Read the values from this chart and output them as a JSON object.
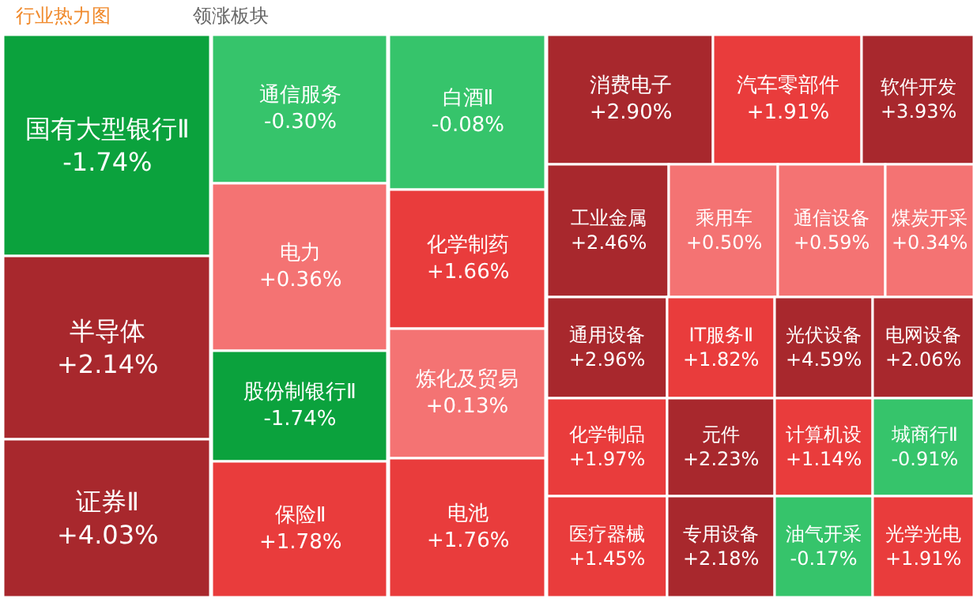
{
  "chart_data": {
    "type": "other",
    "title": "行业热力图",
    "annotations": [
      "领涨板块"
    ],
    "categories": [
      "国有大型银行Ⅱ",
      "半导体",
      "证券Ⅱ",
      "通信服务",
      "电力",
      "股份制银行Ⅱ",
      "保险Ⅱ",
      "白酒Ⅱ",
      "化学制药",
      "炼化及贸易",
      "电池",
      "消费电子",
      "汽车零部件",
      "软件开发",
      "工业金属",
      "乘用车",
      "通信设备",
      "煤炭开采",
      "通用设备",
      "IT服务Ⅱ",
      "光伏设备",
      "电网设备",
      "化学制品",
      "元件",
      "计算机设",
      "城商行Ⅱ",
      "医疗器械",
      "专用设备",
      "油气开采",
      "光学光电"
    ],
    "values": [
      -1.74,
      2.14,
      4.03,
      -0.3,
      0.36,
      -1.74,
      1.78,
      -0.08,
      1.66,
      0.13,
      1.76,
      2.9,
      1.91,
      3.93,
      2.46,
      0.5,
      0.59,
      0.34,
      2.96,
      1.82,
      4.59,
      2.06,
      1.97,
      2.23,
      1.14,
      -0.91,
      1.45,
      2.18,
      -0.17,
      1.91
    ],
    "colors": [
      "#0ba23d",
      "#a8282d",
      "#a8282d",
      "#36c46b",
      "#f47373",
      "#0ba23d",
      "#e93c3c",
      "#36c46b",
      "#e93c3c",
      "#f47373",
      "#e93c3c",
      "#a8282d",
      "#e93c3c",
      "#a8282d",
      "#a8282d",
      "#f47373",
      "#f47373",
      "#f47373",
      "#a8282d",
      "#e93c3c",
      "#a8282d",
      "#a8282d",
      "#e93c3c",
      "#a8282d",
      "#e93c3c",
      "#36c46b",
      "#e93c3c",
      "#a8282d",
      "#36c46b",
      "#e93c3c"
    ],
    "value_labels": [
      "-1.74%",
      "+2.14%",
      "+4.03%",
      "-0.30%",
      "+0.36%",
      "-1.74%",
      "+1.78%",
      "-0.08%",
      "+1.66%",
      "+0.13%",
      "+1.76%",
      "+2.90%",
      "+1.91%",
      "+3.93%",
      "+2.46%",
      "+0.50%",
      "+0.59%",
      "+0.34%",
      "+2.96%",
      "+1.82%",
      "+4.59%",
      "+2.06%",
      "+1.97%",
      "+2.23%",
      "+1.14%",
      "-0.91%",
      "+1.45%",
      "+2.18%",
      "-0.17%",
      "+1.91%"
    ]
  }
}
